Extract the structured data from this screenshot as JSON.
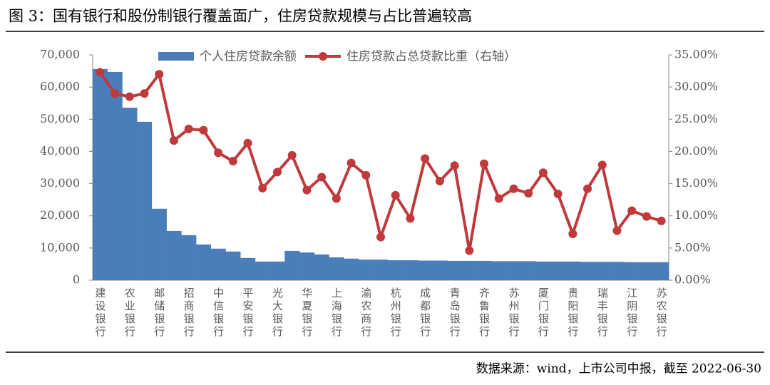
{
  "chart_data": {
    "type": "bar_line",
    "title": "图 3：国有银行和股份制银行覆盖面广，住房贷款规模与占比普遍较高",
    "source": "数据来源：wind，上市公司中报，截至 2022-06-30",
    "categories": [
      "建设银行",
      null,
      "农业银行",
      null,
      "邮储银行",
      null,
      "招商银行",
      null,
      "中信银行",
      null,
      "平安银行",
      null,
      "光大银行",
      null,
      "华夏银行",
      null,
      "上海银行",
      null,
      "渝农商行",
      null,
      "杭州银行",
      null,
      "成都银行",
      null,
      "青岛银行",
      null,
      "齐鲁银行",
      null,
      "苏州银行",
      null,
      "厦门银行",
      null,
      "贵阳银行",
      null,
      "瑞丰银行",
      null,
      "江阴银行",
      null,
      "苏农银行"
    ],
    "series": [
      {
        "name": "个人住房贷款余额",
        "type": "bar",
        "color": "#4a7ebb",
        "values": [
          65600,
          64700,
          53600,
          49200,
          22200,
          15300,
          14000,
          11100,
          9800,
          8900,
          6900,
          5800,
          5800,
          9100,
          8600,
          8000,
          7100,
          6700,
          6400,
          6400,
          6200,
          6200,
          6100,
          6100,
          6000,
          6000,
          6000,
          5900,
          5900,
          5900,
          5800,
          5800,
          5800,
          5700,
          5700,
          5700,
          5600,
          5600,
          5600
        ]
      },
      {
        "name": "住房贷款占总贷款比重（右轴）",
        "type": "line",
        "axis": "y2",
        "color": "#c0393b",
        "values": [
          32.3,
          29,
          28.5,
          29,
          32,
          21.7,
          23.5,
          23.3,
          19.8,
          18.5,
          21.3,
          14.3,
          16.8,
          19.4,
          14,
          16,
          12.7,
          18.2,
          16.3,
          6.7,
          13.2,
          9.6,
          18.9,
          15.4,
          17.8,
          4.6,
          18.1,
          12.7,
          14.2,
          13.5,
          16.7,
          13.4,
          7.2,
          14.2,
          17.9,
          7.7,
          10.8,
          9.9,
          9.2
        ]
      }
    ],
    "ylim": [
      0,
      70000
    ],
    "yticks": [
      0,
      {
        "value": 10000,
        "label": "10,000"
      },
      {
        "value": 20000,
        "label": "20,000"
      },
      {
        "value": 30000,
        "label": "30,000"
      },
      {
        "value": 40000,
        "label": "40,000"
      },
      {
        "value": 50000,
        "label": "50,000"
      },
      {
        "value": 60000,
        "label": "60,000"
      },
      {
        "value": 70000,
        "label": "70,000"
      }
    ],
    "y2lim": [
      0,
      35
    ],
    "y2ticks": [
      {
        "value": 0,
        "label": "0.00%"
      },
      {
        "value": 5,
        "label": "5.00%"
      },
      {
        "value": 10,
        "label": "10.00%"
      },
      {
        "value": 15,
        "label": "15.00%"
      },
      {
        "value": 20,
        "label": "20.00%"
      },
      {
        "value": 25,
        "label": "25.00%"
      },
      {
        "value": 30,
        "label": "30.00%"
      },
      {
        "value": 35,
        "label": "35.00%"
      }
    ],
    "legend": "top"
  }
}
